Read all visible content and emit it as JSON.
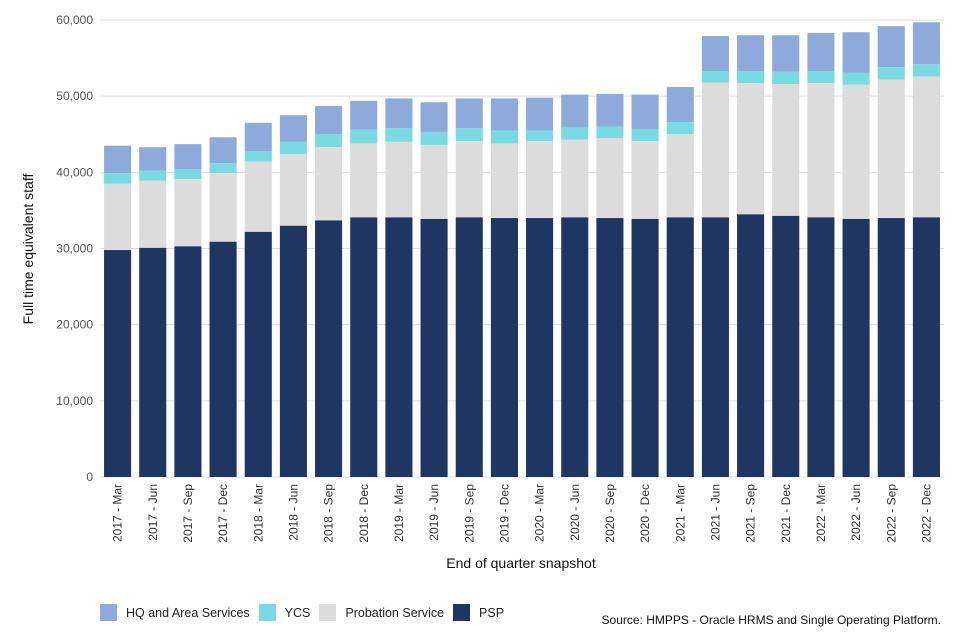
{
  "chart_data": {
    "type": "bar",
    "stacked": true,
    "title": "",
    "xlabel": "End of quarter snapshot",
    "ylabel": "Full time equivalent staff",
    "ylim": [
      0,
      60000
    ],
    "yticks": [
      0,
      10000,
      20000,
      30000,
      40000,
      50000,
      60000
    ],
    "ytick_labels": [
      "0",
      "10,000",
      "20,000",
      "30,000",
      "40,000",
      "50,000",
      "60,000"
    ],
    "grid": true,
    "legend_position": "bottom-left",
    "categories": [
      "2017 - Mar",
      "2017 - Jun",
      "2017 - Sep",
      "2017 - Dec",
      "2018 - Mar",
      "2018 - Jun",
      "2018 - Sep",
      "2018 - Dec",
      "2019 - Mar",
      "2019 - Jun",
      "2019 - Sep",
      "2019 - Dec",
      "2020 - Mar",
      "2020 - Jun",
      "2020 - Sep",
      "2020 - Dec",
      "2021 - Mar",
      "2021 - Jun",
      "2021 - Sep",
      "2021 - Dec",
      "2022 - Mar",
      "2022 - Jun",
      "2022 - Sep",
      "2022 - Dec"
    ],
    "series": [
      {
        "name": "PSP",
        "color": "#1f3562",
        "values": [
          29800,
          30100,
          30300,
          30900,
          32200,
          33000,
          33700,
          34100,
          34100,
          33900,
          34100,
          34000,
          34000,
          34100,
          34000,
          33900,
          34100,
          34100,
          34500,
          34300,
          34100,
          33900,
          34000,
          34100
        ]
      },
      {
        "name": "Probation Service",
        "color": "#dcdcdc",
        "values": [
          8700,
          8800,
          8800,
          9000,
          9200,
          9400,
          9600,
          9700,
          9900,
          9700,
          10000,
          9800,
          10100,
          10200,
          10500,
          10200,
          10900,
          17700,
          17200,
          17300,
          17600,
          17600,
          18200,
          18500
        ]
      },
      {
        "name": "YCS",
        "color": "#79dbe2",
        "values": [
          1400,
          1300,
          1300,
          1300,
          1400,
          1600,
          1700,
          1800,
          1800,
          1700,
          1700,
          1700,
          1400,
          1600,
          1500,
          1600,
          1600,
          1500,
          1600,
          1600,
          1600,
          1600,
          1600,
          1600
        ]
      },
      {
        "name": "HQ and Area Services",
        "color": "#8eaadb",
        "values": [
          3600,
          3100,
          3300,
          3400,
          3700,
          3500,
          3700,
          3800,
          3900,
          3900,
          3900,
          4200,
          4300,
          4300,
          4300,
          4500,
          4600,
          4600,
          4700,
          4800,
          5000,
          5300,
          5400,
          5500
        ]
      }
    ],
    "legend_order": [
      "HQ and Area Services",
      "YCS",
      "Probation Service",
      "PSP"
    ],
    "source": "Source: HMPPS - Oracle HRMS and Single Operating Platform."
  },
  "legend": [
    {
      "label": "HQ and Area Services",
      "color": "#8eaadb"
    },
    {
      "label": "YCS",
      "color": "#79dbe2"
    },
    {
      "label": "Probation Service",
      "color": "#dcdcdc"
    },
    {
      "label": "PSP",
      "color": "#1f3562"
    }
  ],
  "source_text": "Source: HMPPS - Oracle HRMS and Single Operating Platform."
}
